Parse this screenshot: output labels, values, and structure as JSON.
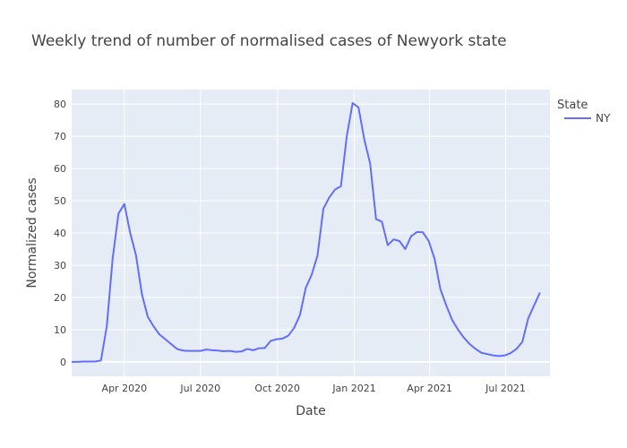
{
  "chart_data": {
    "type": "line",
    "title": "Weekly trend of number of normalised cases of Newyork state",
    "xlabel": "Date",
    "ylabel": "Normalized cases",
    "legend": {
      "title": "State",
      "placement": "right"
    },
    "x_ticks": [
      {
        "date": "2020-04-01",
        "label": "Apr 2020"
      },
      {
        "date": "2020-07-01",
        "label": "Jul 2020"
      },
      {
        "date": "2020-10-01",
        "label": "Oct 2020"
      },
      {
        "date": "2021-01-01",
        "label": "Jan 2021"
      },
      {
        "date": "2021-04-01",
        "label": "Apr 2021"
      },
      {
        "date": "2021-07-01",
        "label": "Jul 2021"
      }
    ],
    "y_ticks": [
      0,
      10,
      20,
      30,
      40,
      50,
      60,
      70,
      80
    ],
    "xlim": [
      "2020-01-29",
      "2021-08-23"
    ],
    "ylim": [
      -4.5,
      84.5
    ],
    "grid": true,
    "series": [
      {
        "name": "NY",
        "color": "#636efa",
        "points": [
          [
            "2020-01-29",
            0
          ],
          [
            "2020-02-05",
            0
          ],
          [
            "2020-02-12",
            0.1
          ],
          [
            "2020-02-19",
            0.1
          ],
          [
            "2020-02-26",
            0.1
          ],
          [
            "2020-03-04",
            0.4
          ],
          [
            "2020-03-11",
            11
          ],
          [
            "2020-03-18",
            32
          ],
          [
            "2020-03-25",
            46
          ],
          [
            "2020-04-01",
            49
          ],
          [
            "2020-04-08",
            40
          ],
          [
            "2020-04-15",
            33
          ],
          [
            "2020-04-22",
            21
          ],
          [
            "2020-04-29",
            14
          ],
          [
            "2020-05-06",
            11
          ],
          [
            "2020-05-13",
            8.5
          ],
          [
            "2020-05-20",
            7
          ],
          [
            "2020-05-27",
            5.5
          ],
          [
            "2020-06-03",
            4
          ],
          [
            "2020-06-10",
            3.5
          ],
          [
            "2020-06-17",
            3.4
          ],
          [
            "2020-06-24",
            3.4
          ],
          [
            "2020-07-01",
            3.4
          ],
          [
            "2020-07-08",
            3.8
          ],
          [
            "2020-07-15",
            3.6
          ],
          [
            "2020-07-22",
            3.5
          ],
          [
            "2020-07-29",
            3.3
          ],
          [
            "2020-08-05",
            3.4
          ],
          [
            "2020-08-12",
            3.1
          ],
          [
            "2020-08-19",
            3.2
          ],
          [
            "2020-08-26",
            4
          ],
          [
            "2020-09-02",
            3.6
          ],
          [
            "2020-09-09",
            4.2
          ],
          [
            "2020-09-16",
            4.3
          ],
          [
            "2020-09-23",
            6.5
          ],
          [
            "2020-09-30",
            7
          ],
          [
            "2020-10-07",
            7.2
          ],
          [
            "2020-10-14",
            8.1
          ],
          [
            "2020-10-21",
            10.5
          ],
          [
            "2020-10-28",
            14.5
          ],
          [
            "2020-11-04",
            23
          ],
          [
            "2020-11-11",
            27
          ],
          [
            "2020-11-18",
            33
          ],
          [
            "2020-11-25",
            47.5
          ],
          [
            "2020-12-02",
            51
          ],
          [
            "2020-12-09",
            53.5
          ],
          [
            "2020-12-16",
            54.5
          ],
          [
            "2020-12-23",
            70
          ],
          [
            "2020-12-30",
            80.3
          ],
          [
            "2021-01-06",
            79
          ],
          [
            "2021-01-13",
            69
          ],
          [
            "2021-01-20",
            61.5
          ],
          [
            "2021-01-27",
            44.3
          ],
          [
            "2021-02-03",
            43.5
          ],
          [
            "2021-02-10",
            36.2
          ],
          [
            "2021-02-17",
            38
          ],
          [
            "2021-02-24",
            37.5
          ],
          [
            "2021-03-03",
            35
          ],
          [
            "2021-03-10",
            39
          ],
          [
            "2021-03-17",
            40.3
          ],
          [
            "2021-03-24",
            40.2
          ],
          [
            "2021-03-31",
            37.5
          ],
          [
            "2021-04-07",
            32
          ],
          [
            "2021-04-14",
            22.5
          ],
          [
            "2021-04-21",
            17.5
          ],
          [
            "2021-04-28",
            13
          ],
          [
            "2021-05-05",
            10
          ],
          [
            "2021-05-12",
            7.5
          ],
          [
            "2021-05-19",
            5.5
          ],
          [
            "2021-05-26",
            4
          ],
          [
            "2021-06-02",
            2.8
          ],
          [
            "2021-06-09",
            2.4
          ],
          [
            "2021-06-16",
            2
          ],
          [
            "2021-06-23",
            1.8
          ],
          [
            "2021-06-30",
            2
          ],
          [
            "2021-07-07",
            2.7
          ],
          [
            "2021-07-14",
            4
          ],
          [
            "2021-07-21",
            6.2
          ],
          [
            "2021-07-28",
            13.5
          ],
          [
            "2021-08-04",
            17.5
          ],
          [
            "2021-08-11",
            21.5
          ]
        ]
      }
    ]
  }
}
